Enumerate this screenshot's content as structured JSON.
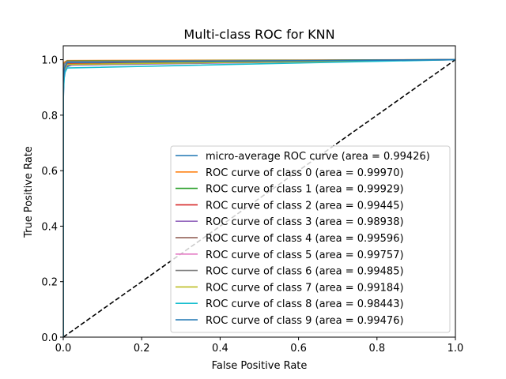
{
  "chart_data": {
    "type": "line",
    "title": "Multi-class ROC for KNN",
    "xlabel": "False Positive Rate",
    "ylabel": "True Positive Rate",
    "xlim": [
      0.0,
      1.0
    ],
    "ylim": [
      0.0,
      1.05
    ],
    "xticks": [
      "0.0",
      "0.2",
      "0.4",
      "0.6",
      "0.8",
      "1.0"
    ],
    "yticks": [
      "0.0",
      "0.2",
      "0.4",
      "0.6",
      "0.8",
      "1.0"
    ],
    "grid": false,
    "legend_position": "lower-right",
    "diagonal": {
      "color": "#000000",
      "style": "dashed",
      "x": [
        0,
        1
      ],
      "y": [
        0,
        1
      ]
    },
    "series": [
      {
        "name": "micro-average ROC curve (area = 0.99426)",
        "color": "#1f77b4",
        "x": [
          0,
          0,
          0.002,
          0.005,
          0.01,
          0.03,
          0.1,
          0.3,
          1.0
        ],
        "y": [
          0,
          0.85,
          0.93,
          0.96,
          0.975,
          0.985,
          0.99,
          0.995,
          1.0
        ]
      },
      {
        "name": "ROC curve of class 0 (area = 0.99970)",
        "color": "#ff7f0e",
        "x": [
          0,
          0,
          0.002,
          0.01,
          1.0
        ],
        "y": [
          0,
          0.97,
          0.99,
          0.997,
          1.0
        ]
      },
      {
        "name": "ROC curve of class 1 (area = 0.99929)",
        "color": "#2ca02c",
        "x": [
          0,
          0,
          0.003,
          0.01,
          1.0
        ],
        "y": [
          0,
          0.95,
          0.985,
          0.995,
          1.0
        ]
      },
      {
        "name": "ROC curve of class 2 (area = 0.99445)",
        "color": "#d62728",
        "x": [
          0,
          0,
          0.003,
          0.01,
          1.0
        ],
        "y": [
          0,
          0.92,
          0.96,
          0.985,
          1.0
        ]
      },
      {
        "name": "ROC curve of class 3 (area = 0.98938)",
        "color": "#9467bd",
        "x": [
          0,
          0,
          0.003,
          0.01,
          1.0
        ],
        "y": [
          0,
          0.9,
          0.95,
          0.98,
          1.0
        ]
      },
      {
        "name": "ROC curve of class 4 (area = 0.99596)",
        "color": "#8c564b",
        "x": [
          0,
          0,
          0.003,
          0.01,
          1.0
        ],
        "y": [
          0,
          0.93,
          0.97,
          0.99,
          1.0
        ]
      },
      {
        "name": "ROC curve of class 5 (area = 0.99757)",
        "color": "#e377c2",
        "x": [
          0,
          0,
          0.003,
          0.01,
          1.0
        ],
        "y": [
          0,
          0.94,
          0.975,
          0.99,
          1.0
        ]
      },
      {
        "name": "ROC curve of class 6 (area = 0.99485)",
        "color": "#7f7f7f",
        "x": [
          0,
          0,
          0.003,
          0.01,
          1.0
        ],
        "y": [
          0,
          0.95,
          0.985,
          0.994,
          1.0
        ]
      },
      {
        "name": "ROC curve of class 7 (area = 0.99184)",
        "color": "#bcbd22",
        "x": [
          0,
          0,
          0.003,
          0.01,
          1.0
        ],
        "y": [
          0,
          0.93,
          0.965,
          0.983,
          1.0
        ]
      },
      {
        "name": "ROC curve of class 8 (area = 0.98443)",
        "color": "#17becf",
        "x": [
          0,
          0,
          0.003,
          0.01,
          1.0
        ],
        "y": [
          0,
          0.88,
          0.95,
          0.97,
          1.0
        ]
      },
      {
        "name": "ROC curve of class 9 (area = 0.99476)",
        "color": "#1f77b4",
        "x": [
          0,
          0,
          0.003,
          0.01,
          1.0
        ],
        "y": [
          0,
          0.92,
          0.97,
          0.99,
          1.0
        ]
      }
    ]
  }
}
